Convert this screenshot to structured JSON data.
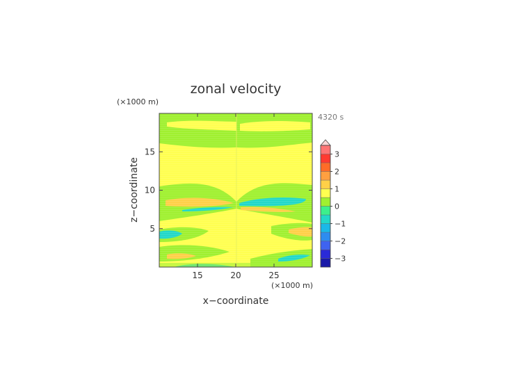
{
  "chart_data": {
    "type": "heatmap",
    "title": "zonal velocity",
    "time_label": "4320 s",
    "xlabel": "x−coordinate",
    "ylabel": "z−coordinate",
    "x_unit": "(×1000 m)",
    "y_unit": "(×1000 m)",
    "xlim": [
      10,
      30
    ],
    "ylim": [
      0,
      20
    ],
    "x_ticks": [
      15,
      20,
      25
    ],
    "y_ticks": [
      5,
      10,
      15
    ],
    "colorbar": {
      "levels": [
        -3.5,
        -3,
        -2.5,
        -2,
        -1.5,
        -1,
        -0.5,
        0,
        0.5,
        1,
        1.5,
        2,
        2.5,
        3,
        3.5
      ],
      "colors": [
        "#1a1aa8",
        "#2a2ad8",
        "#3f63f0",
        "#2d8cf0",
        "#1ab8e8",
        "#22d8c8",
        "#3cf08c",
        "#a0f030",
        "#ffff50",
        "#ffd048",
        "#ffa040",
        "#ff6c28",
        "#ff3a30",
        "#ff7474",
        "#ffa8a8"
      ],
      "tick_labels": [
        "3",
        "2",
        "1",
        "0",
        "−1",
        "−2",
        "−3"
      ],
      "tick_values": [
        3,
        2,
        1,
        0,
        -1,
        -2,
        -3
      ],
      "extend": "max"
    },
    "regions": [
      {
        "level": "weak westerly (0 to 0.5)",
        "x": [
          10,
          30
        ],
        "z": [
          0.5,
          19.5
        ]
      },
      {
        "level": "weak easterly (-0.5 to 0)",
        "x": [
          10,
          30
        ],
        "z": [
          13,
          18
        ]
      },
      {
        "level": "moderate westerly (0.5 to 1)",
        "x": [
          10.5,
          19.5
        ],
        "z": [
          8,
          9
        ]
      },
      {
        "level": "easterly (-1 to -0.5)",
        "x": [
          20.5,
          28
        ],
        "z": [
          8,
          9
        ]
      },
      {
        "level": "easterly (-1 to -0.5)",
        "x": [
          14,
          19
        ],
        "z": [
          7.3,
          7.8
        ]
      },
      {
        "level": "westerly (0.5 to 1)",
        "x": [
          21,
          28
        ],
        "z": [
          7.3,
          7.8
        ]
      },
      {
        "level": "easterly (-1 to -0.5)",
        "x": [
          10,
          14
        ],
        "z": [
          3.5,
          5.5
        ]
      },
      {
        "level": "westerly (0.5 to 1)",
        "x": [
          26,
          30
        ],
        "z": [
          4,
          5
        ]
      },
      {
        "level": "westerly (0.5 to 1)",
        "x": [
          11,
          15
        ],
        "z": [
          1,
          2
        ]
      },
      {
        "level": "easterly (-1 to -0.5)",
        "x": [
          25,
          30
        ],
        "z": [
          1,
          2
        ]
      },
      {
        "level": "easterly (-1 to -0.5)",
        "x": [
          14,
          20
        ],
        "z": [
          0,
          0.4
        ]
      }
    ]
  }
}
